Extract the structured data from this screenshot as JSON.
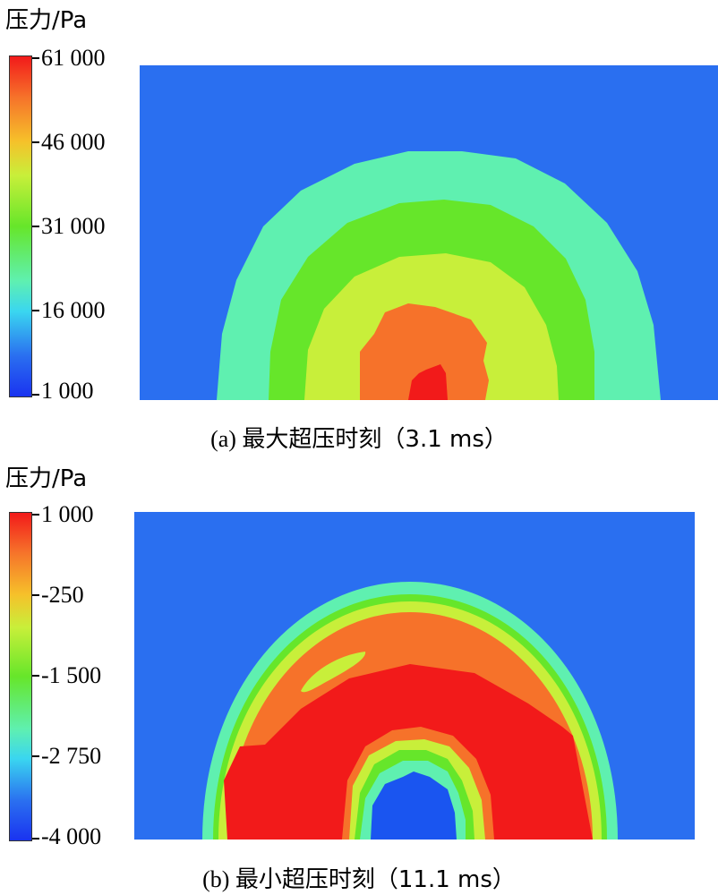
{
  "chart_data": [
    {
      "type": "heatmap",
      "unit_label": "压力/Pa",
      "colorbar_ticks": [
        "61 000",
        "46 000",
        "31 000",
        "16 000",
        "1 000"
      ],
      "range": [
        1000,
        61000
      ],
      "caption_prefix": "(a)",
      "caption_text": "最大超压时刻（3.1 ms）",
      "contours": [
        {
          "level": 1000,
          "color": "#2a6ff0"
        },
        {
          "level": 16000,
          "color": "#5ff0b0"
        },
        {
          "level": 31000,
          "color": "#66e62a"
        },
        {
          "level": 46000,
          "color": "#c8ef3a"
        },
        {
          "level": 52000,
          "color": "#f6722a"
        },
        {
          "level": 61000,
          "color": "#f21a1a"
        }
      ]
    },
    {
      "type": "heatmap",
      "unit_label": "压力/Pa",
      "colorbar_ticks": [
        "1 000",
        "-250",
        "-1 500",
        "-2 750",
        "-4 000"
      ],
      "range": [
        -4000,
        1000
      ],
      "caption_prefix": "(b)",
      "caption_text": "最小超压时刻（11.1 ms）",
      "contours": [
        {
          "level": -4000,
          "color": "#1a55f0"
        },
        {
          "level": -2750,
          "color": "#5ff0b0"
        },
        {
          "level": -1500,
          "color": "#66e62a"
        },
        {
          "level": -250,
          "color": "#c8ef3a"
        },
        {
          "level": 500,
          "color": "#f6722a"
        },
        {
          "level": 1000,
          "color": "#f21a1a"
        }
      ]
    }
  ]
}
